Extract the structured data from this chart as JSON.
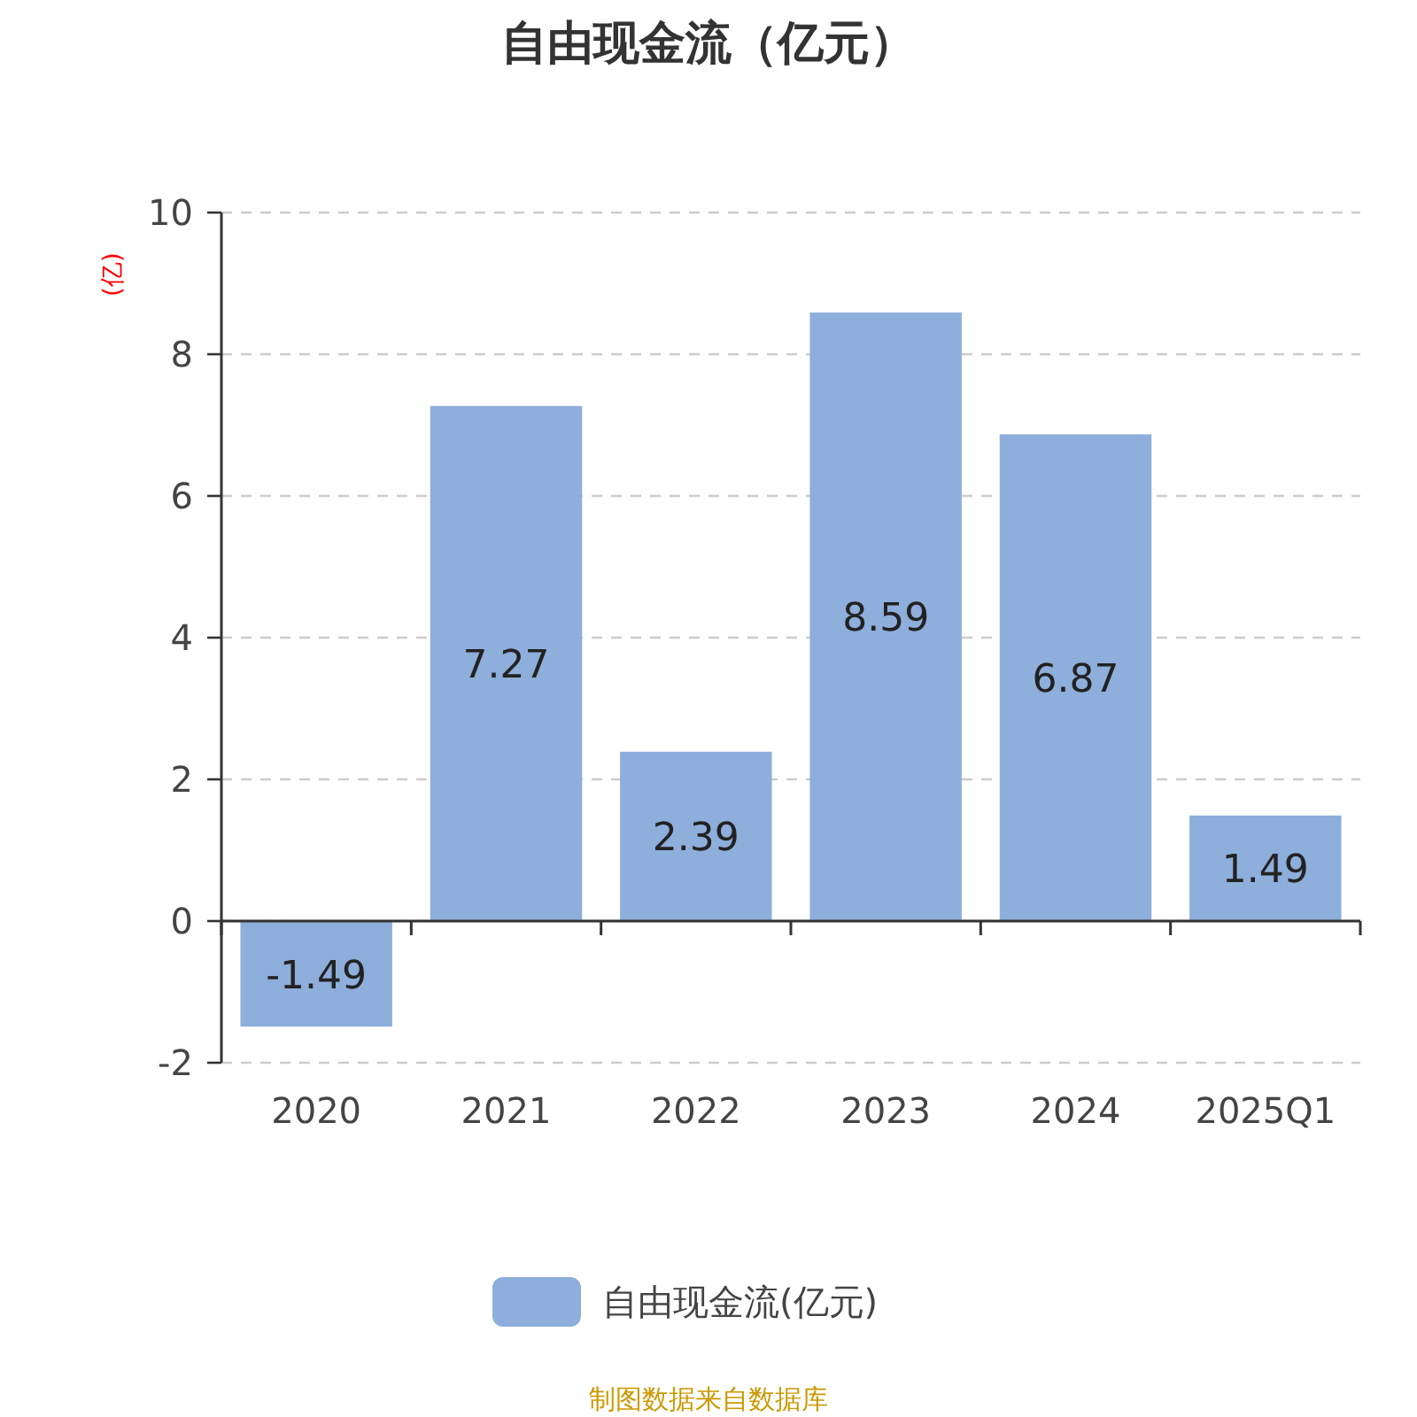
{
  "chart_data": {
    "type": "bar",
    "title": "自由现金流（亿元）",
    "ylabel": "(亿)",
    "categories": [
      "2020",
      "2021",
      "2022",
      "2023",
      "2024",
      "2025Q1"
    ],
    "series": [
      {
        "name": "自由现金流(亿元)",
        "color": "#8eaedb",
        "values": [
          -1.49,
          7.27,
          2.39,
          8.59,
          6.87,
          1.49
        ]
      }
    ],
    "ylim": [
      -2,
      10
    ],
    "yticks": [
      -2,
      0,
      2,
      4,
      6,
      8,
      10
    ],
    "grid": "y",
    "legend": "bottom",
    "data_labels": true,
    "annotations": [
      "制图数据来自数据库"
    ]
  }
}
